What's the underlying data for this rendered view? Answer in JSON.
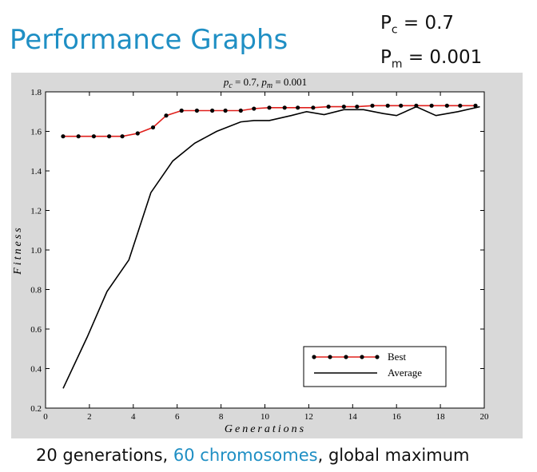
{
  "slide": {
    "title": "Performance Graphs",
    "param_pc_base": "P",
    "param_pc_sub": "c",
    "param_pc_value": " = 0.7",
    "param_pm_base": "P",
    "param_pm_sub": "m",
    "param_pm_value": " = 0.001",
    "caption_part1": "20 generations, ",
    "caption_highlight": "60 chromosomes",
    "caption_part2": ", global maximum"
  },
  "colors": {
    "accent": "#1f8fc4",
    "best_line": "#e0201c",
    "average_line": "#000000",
    "frame_bg": "#d9d9d9"
  },
  "chart_data": {
    "type": "line",
    "title_pc": "p",
    "title_pc_sub": "c",
    "title_pc_value": " = 0.7,  ",
    "title_pm": "p",
    "title_pm_sub": "m",
    "title_pm_value": " = 0.001",
    "xlabel": "Generations",
    "ylabel": "Fitness",
    "xlim": [
      0,
      20
    ],
    "ylim": [
      0.2,
      1.8
    ],
    "x_ticks": [
      0,
      2,
      4,
      6,
      8,
      10,
      12,
      14,
      16,
      18,
      20
    ],
    "y_ticks": [
      0.2,
      0.4,
      0.6,
      0.8,
      1.0,
      1.2,
      1.4,
      1.6,
      1.8
    ],
    "y_tick_labels": [
      "0.2",
      "0.4",
      "0.6",
      "0.8",
      "1.0",
      "1.2",
      "1.4",
      "1.6",
      "1.8"
    ],
    "legend_position": "bottom-right",
    "series": [
      {
        "name": "Best",
        "marker": true,
        "x": [
          0.8,
          1.5,
          2.2,
          2.9,
          3.5,
          4.2,
          4.9,
          5.5,
          6.2,
          6.9,
          7.6,
          8.2,
          8.9,
          9.5,
          10.2,
          10.9,
          11.5,
          12.2,
          12.9,
          13.6,
          14.2,
          14.9,
          15.6,
          16.2,
          16.9,
          17.6,
          18.3,
          18.9,
          19.6
        ],
        "y": [
          1.575,
          1.575,
          1.575,
          1.575,
          1.575,
          1.59,
          1.62,
          1.68,
          1.705,
          1.705,
          1.705,
          1.705,
          1.705,
          1.715,
          1.72,
          1.72,
          1.72,
          1.72,
          1.725,
          1.725,
          1.725,
          1.73,
          1.73,
          1.73,
          1.73,
          1.73,
          1.73,
          1.73,
          1.73
        ]
      },
      {
        "name": "Average",
        "marker": false,
        "x": [
          0.8,
          1.9,
          2.8,
          3.8,
          4.8,
          5.8,
          6.8,
          7.8,
          8.9,
          9.5,
          10.2,
          11.2,
          11.9,
          12.7,
          13.6,
          14.5,
          15.4,
          16.0,
          16.9,
          17.8,
          18.8,
          19.8
        ],
        "y": [
          0.3,
          0.56,
          0.79,
          0.95,
          1.29,
          1.45,
          1.54,
          1.6,
          1.648,
          1.655,
          1.655,
          1.68,
          1.7,
          1.685,
          1.71,
          1.71,
          1.69,
          1.68,
          1.725,
          1.68,
          1.7,
          1.725
        ]
      }
    ]
  }
}
